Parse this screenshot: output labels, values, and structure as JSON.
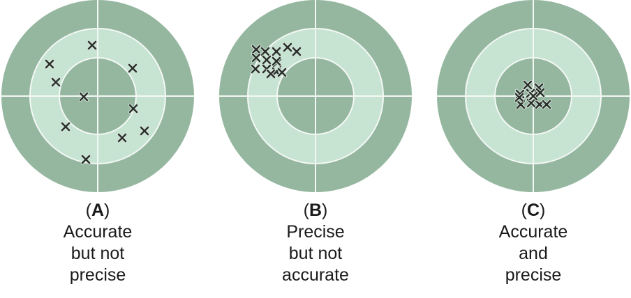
{
  "panels": [
    {
      "id": "A",
      "letter": "A",
      "caption_lines": [
        "Accurate",
        "but not",
        "precise"
      ],
      "hits": [
        [
          -8,
          -73
        ],
        [
          -69,
          -46
        ],
        [
          50,
          -40
        ],
        [
          -60,
          -20
        ],
        [
          -20,
          1
        ],
        [
          51,
          18
        ],
        [
          -46,
          44
        ],
        [
          35,
          60
        ],
        [
          67,
          50
        ],
        [
          -17,
          91
        ]
      ]
    },
    {
      "id": "B",
      "letter": "B",
      "caption_lines": [
        "Precise",
        "but not",
        "accurate"
      ],
      "hits": [
        [
          -85,
          -67
        ],
        [
          -72,
          -64
        ],
        [
          -56,
          -64
        ],
        [
          -40,
          -70
        ],
        [
          -27,
          -64
        ],
        [
          -85,
          -55
        ],
        [
          -70,
          -52
        ],
        [
          -55,
          -48
        ],
        [
          -86,
          -39
        ],
        [
          -70,
          -39
        ],
        [
          -56,
          -50
        ],
        [
          -56,
          -35
        ],
        [
          -64,
          -32
        ],
        [
          -48,
          -34
        ]
      ]
    },
    {
      "id": "C",
      "letter": "C",
      "caption_lines": [
        "Accurate",
        "and",
        "precise"
      ],
      "hits": [
        [
          -8,
          -16
        ],
        [
          8,
          -12
        ],
        [
          -19,
          -3
        ],
        [
          -4,
          -4
        ],
        [
          10,
          -5
        ],
        [
          -18,
          12
        ],
        [
          -3,
          10
        ],
        [
          9,
          12
        ],
        [
          19,
          12
        ],
        [
          -20,
          2
        ],
        [
          0,
          0
        ]
      ]
    }
  ],
  "colors": {
    "outer_ring": "#95b7a0",
    "middle_ring": "#c7e3d2",
    "bullseye": "#95b7a0",
    "crosshair": "#f4f8f5",
    "mark": "#2b2f2c",
    "mark_halo": "#d6e6dc"
  }
}
